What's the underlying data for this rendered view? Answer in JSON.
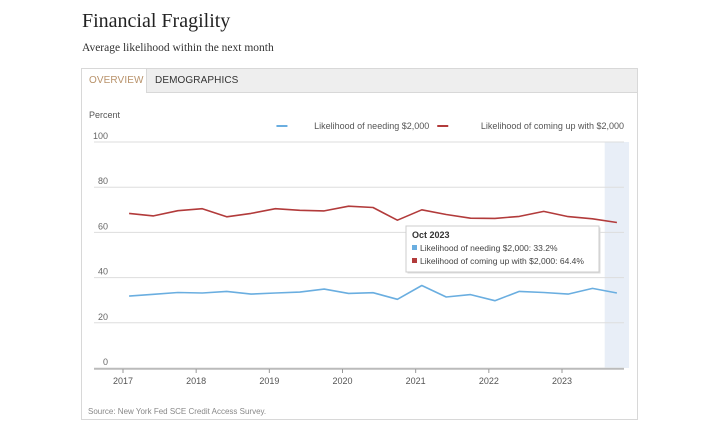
{
  "header": {
    "title": "Financial Fragility",
    "subtitle": "Average likelihood within the next month"
  },
  "tabs": [
    {
      "label": "OVERVIEW",
      "active": true
    },
    {
      "label": "DEMOGRAPHICS",
      "active": false
    }
  ],
  "source": "Source: New York Fed SCE Credit Access Survey.",
  "colors": {
    "needing": "#6aaee0",
    "coming_up": "#b23b3b",
    "highlight_band": "#e8eef7",
    "grid": "#dddddd",
    "tab_active": "#b8926a"
  },
  "tooltip": {
    "title": "Oct 2023",
    "lines": [
      {
        "text": "Likelihood of needing $2,000: 33.2%",
        "series": "needing"
      },
      {
        "text": "Likelihood of coming up with $2,000: 64.4%",
        "series": "coming_up"
      }
    ]
  },
  "chart_data": {
    "type": "line",
    "ylabel": "Percent",
    "ylim": [
      0,
      100
    ],
    "yticks": [
      0,
      20,
      40,
      60,
      80,
      100
    ],
    "xticks": [
      "2017",
      "2018",
      "2019",
      "2020",
      "2021",
      "2022",
      "2023"
    ],
    "grid": true,
    "legend_position": "top-right",
    "x": [
      "Feb 2017",
      "Jun 2017",
      "Oct 2017",
      "Feb 2018",
      "Jun 2018",
      "Oct 2018",
      "Feb 2019",
      "Jun 2019",
      "Oct 2019",
      "Feb 2020",
      "Jun 2020",
      "Oct 2020",
      "Feb 2021",
      "Jun 2021",
      "Oct 2021",
      "Feb 2022",
      "Jun 2022",
      "Oct 2022",
      "Feb 2023",
      "Jun 2023",
      "Oct 2023"
    ],
    "highlighted_x": "Oct 2023",
    "series": [
      {
        "name": "Likelihood of needing $2,000",
        "key": "needing",
        "values": [
          31.8,
          32.6,
          33.4,
          33.2,
          33.9,
          32.7,
          33.2,
          33.6,
          34.9,
          33.0,
          33.3,
          30.4,
          36.5,
          31.4,
          32.5,
          29.8,
          33.9,
          33.4,
          32.7,
          35.2,
          33.2
        ]
      },
      {
        "name": "Likelihood of coming up with $2,000",
        "key": "coming_up",
        "values": [
          68.4,
          67.3,
          69.6,
          70.5,
          66.9,
          68.4,
          70.5,
          69.8,
          69.5,
          71.6,
          71.0,
          65.4,
          70.0,
          67.9,
          66.3,
          66.2,
          67.1,
          69.3,
          67.0,
          66.0,
          64.4
        ]
      }
    ]
  }
}
